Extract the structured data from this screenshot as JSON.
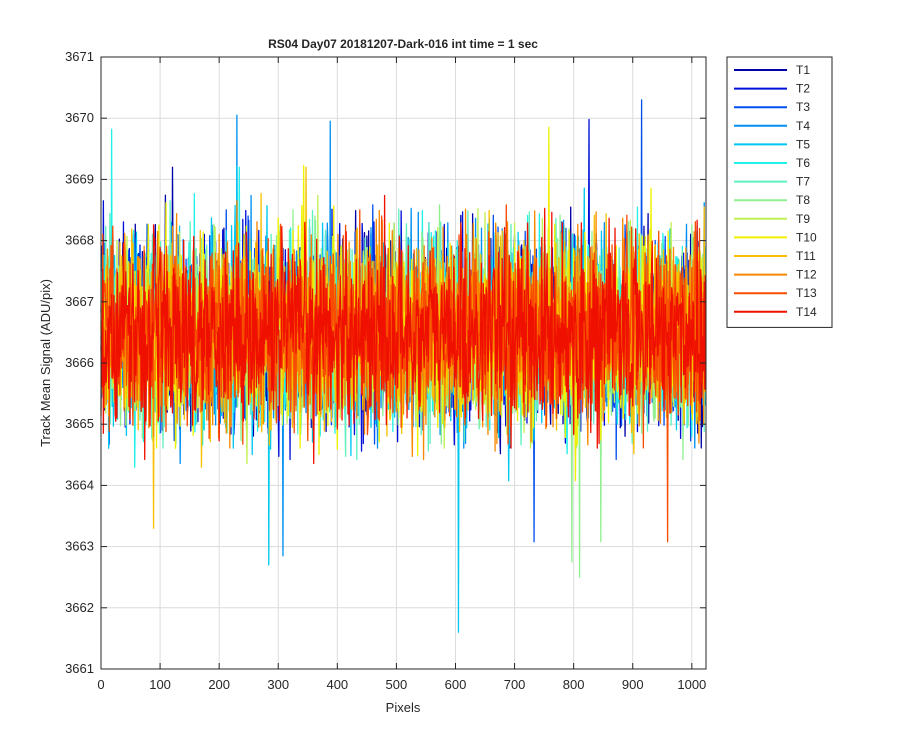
{
  "chart_data": {
    "type": "line",
    "title": "RS04 Day07 20181207-Dark-016 int time = 1 sec",
    "xlabel": "Pixels",
    "ylabel": "Track Mean Signal (ADU/pix)",
    "xlim": [
      0,
      1024
    ],
    "ylim": [
      3661,
      3671
    ],
    "xticks": [
      0,
      100,
      200,
      300,
      400,
      500,
      600,
      700,
      800,
      900,
      1000
    ],
    "yticks": [
      3661,
      3662,
      3663,
      3664,
      3665,
      3666,
      3667,
      3668,
      3669,
      3670,
      3671
    ],
    "grid": true,
    "legend_position": "outside-top-right",
    "n_points": 1024,
    "baseline": 3666.5,
    "spread": 1.15,
    "series": [
      {
        "name": "T1",
        "color": "#0000a8"
      },
      {
        "name": "T2",
        "color": "#0010d8"
      },
      {
        "name": "T3",
        "color": "#0050ee"
      },
      {
        "name": "T4",
        "color": "#0090f0"
      },
      {
        "name": "T5",
        "color": "#00c8f0"
      },
      {
        "name": "T6",
        "color": "#20f0e8"
      },
      {
        "name": "T7",
        "color": "#60f0c0"
      },
      {
        "name": "T8",
        "color": "#90f090"
      },
      {
        "name": "T9",
        "color": "#c0f050"
      },
      {
        "name": "T10",
        "color": "#f0f000"
      },
      {
        "name": "T11",
        "color": "#f8c000"
      },
      {
        "name": "T12",
        "color": "#f88800"
      },
      {
        "name": "T13",
        "color": "#f84c00"
      },
      {
        "name": "T14",
        "color": "#f01000"
      }
    ],
    "notable_points": [
      {
        "series": "T5",
        "x": 605,
        "y": 3661.6
      },
      {
        "series": "T5",
        "x": 284,
        "y": 3662.7
      },
      {
        "series": "T8",
        "x": 810,
        "y": 3662.5
      },
      {
        "series": "T8",
        "x": 797,
        "y": 3662.75
      },
      {
        "series": "T3",
        "x": 915,
        "y": 3670.3
      },
      {
        "series": "T4",
        "x": 230,
        "y": 3670.05
      },
      {
        "series": "T4",
        "x": 388,
        "y": 3669.95
      },
      {
        "series": "T2",
        "x": 826,
        "y": 3669.98
      },
      {
        "series": "T6",
        "x": 18,
        "y": 3669.82
      },
      {
        "series": "T10",
        "x": 758,
        "y": 3669.85
      },
      {
        "series": "T4",
        "x": 308,
        "y": 3662.85
      },
      {
        "series": "T11",
        "x": 89,
        "y": 3663.3
      }
    ]
  }
}
